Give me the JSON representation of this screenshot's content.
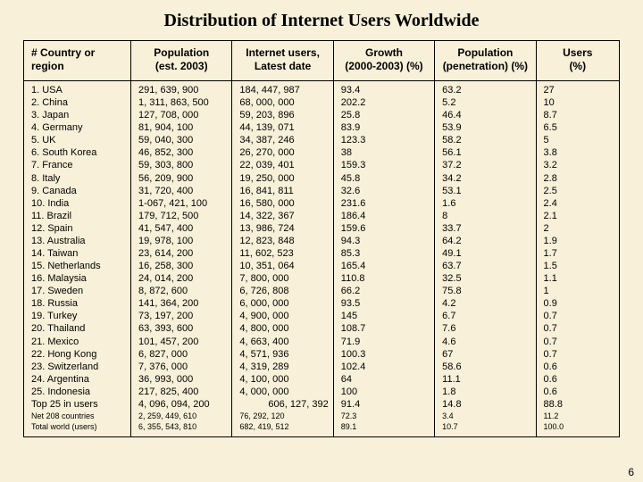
{
  "title": "Distribution of Internet Users Worldwide",
  "page_number": "6",
  "columns": [
    "# Country or region",
    "Population\n(est. 2003)",
    "Internet users,\nLatest date",
    "Growth\n(2000-2003) (%)",
    "Population\n(penetration) (%)",
    "Users\n(%)"
  ],
  "rows": [
    {
      "c": [
        "1. USA",
        "291, 639, 900",
        "184, 447, 987",
        "93.4",
        "63.2",
        "27"
      ]
    },
    {
      "c": [
        "2. China",
        "1, 311, 863, 500",
        "68, 000, 000",
        "202.2",
        "5.2",
        "10"
      ]
    },
    {
      "c": [
        "3. Japan",
        "127, 708, 000",
        "59, 203, 896",
        "25.8",
        "46.4",
        "8.7"
      ]
    },
    {
      "c": [
        "4. Germany",
        "81, 904, 100",
        "44, 139, 071",
        "83.9",
        "53.9",
        "6.5"
      ]
    },
    {
      "c": [
        "5. UK",
        "59, 040, 300",
        "34, 387, 246",
        "123.3",
        "58.2",
        "5"
      ]
    },
    {
      "c": [
        "6. South Korea",
        "46, 852, 300",
        "26, 270, 000",
        "38",
        "56.1",
        "3.8"
      ]
    },
    {
      "c": [
        "7. France",
        "59, 303, 800",
        "22, 039, 401",
        "159.3",
        "37.2",
        "3.2"
      ]
    },
    {
      "c": [
        "8. Italy",
        "56, 209, 900",
        "19, 250, 000",
        "45.8",
        "34.2",
        "2.8"
      ]
    },
    {
      "c": [
        "9. Canada",
        "31, 720, 400",
        "16, 841, 811",
        "32.6",
        "53.1",
        "2.5"
      ]
    },
    {
      "c": [
        "10. India",
        "1-067, 421, 100",
        "16, 580, 000",
        "231.6",
        "1.6",
        "2.4"
      ]
    },
    {
      "c": [
        "11. Brazil",
        "179, 712, 500",
        "14, 322, 367",
        "186.4",
        "8",
        "2.1"
      ]
    },
    {
      "c": [
        "12. Spain",
        "41, 547, 400",
        "13, 986, 724",
        "159.6",
        "33.7",
        "2"
      ]
    },
    {
      "c": [
        "13. Australia",
        "19, 978, 100",
        "12, 823, 848",
        "94.3",
        "64.2",
        "1.9"
      ]
    },
    {
      "c": [
        "14. Taiwan",
        "23, 614, 200",
        "11, 602, 523",
        "85.3",
        "49.1",
        "1.7"
      ]
    },
    {
      "c": [
        "15. Netherlands",
        "16, 258, 300",
        "10, 351, 064",
        "165.4",
        "63.7",
        "1.5"
      ]
    },
    {
      "c": [
        "16. Malaysia",
        "24, 014, 200",
        "7, 800, 000",
        "110.8",
        "32.5",
        "1.1"
      ]
    },
    {
      "c": [
        "17. Sweden",
        "8, 872, 600",
        "6, 726, 808",
        "66.2",
        "75.8",
        "1"
      ]
    },
    {
      "c": [
        "18. Russia",
        "141, 364, 200",
        "6, 000, 000",
        "93.5",
        "4.2",
        "0.9"
      ]
    },
    {
      "c": [
        "19. Turkey",
        "73, 197, 200",
        "4, 900, 000",
        "145",
        "6.7",
        "0.7"
      ]
    },
    {
      "c": [
        "20. Thailand",
        "63, 393, 600",
        "4, 800, 000",
        "108.7",
        "7.6",
        "0.7"
      ]
    },
    {
      "c": [
        "21. Mexico",
        "101, 457, 200",
        "4, 663, 400",
        "71.9",
        "4.6",
        "0.7"
      ]
    },
    {
      "c": [
        "22. Hong Kong",
        "6, 827, 000",
        "4, 571, 936",
        "100.3",
        "67",
        "0.7"
      ]
    },
    {
      "c": [
        "23. Switzerland",
        "7, 376, 000",
        "4, 319, 289",
        "102.4",
        "58.6",
        "0.6"
      ]
    },
    {
      "c": [
        "24. Argentina",
        "36, 993, 000",
        "4, 100, 000",
        "64",
        "11.1",
        "0.6"
      ]
    },
    {
      "c": [
        "25. Indonesia",
        "217, 825, 400",
        "4, 000, 000",
        "100",
        "1.8",
        "0.6"
      ]
    },
    {
      "c": [
        "Top 25 in users",
        "4, 096, 094, 200",
        "606, 127, 392",
        "91.4",
        "14.8",
        "88.8"
      ],
      "indent_col": 2
    }
  ],
  "subrows": [
    {
      "c": [
        "Net 208 countries",
        "2, 259, 449, 610",
        "76, 292, 120",
        "72.3",
        "3.4",
        "11.2"
      ]
    },
    {
      "c": [
        "Total world (users)",
        "6, 355, 543, 810",
        "682, 419, 512",
        "89.1",
        "10.7",
        "100.0"
      ]
    }
  ]
}
